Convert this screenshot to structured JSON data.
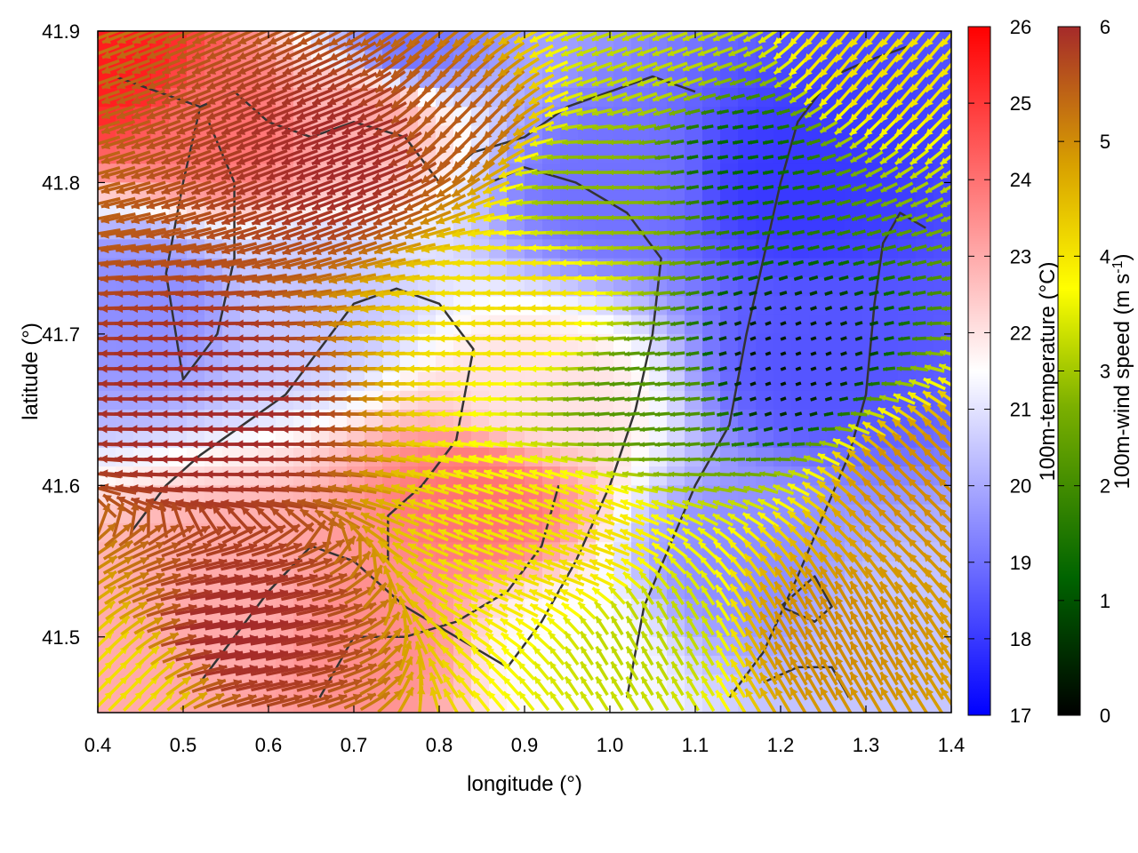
{
  "chart_data": {
    "type": "heatmap",
    "title": "",
    "xlabel": "longitude (°)",
    "ylabel": "latitude (°)",
    "xlim": [
      0.4,
      1.4
    ],
    "ylim": [
      41.45,
      41.9
    ],
    "x_ticks": [
      "0.4",
      "0.5",
      "0.6",
      "0.7",
      "0.8",
      "0.9",
      "1.0",
      "1.1",
      "1.2",
      "1.3",
      "1.4"
    ],
    "y_ticks": [
      "41.5",
      "41.6",
      "41.7",
      "41.8",
      "41.9"
    ],
    "grid": false,
    "fields": {
      "temperature": {
        "label": "100m-temperature (°C)",
        "range": [
          17,
          26
        ],
        "ticks": [
          "17",
          "18",
          "19",
          "20",
          "21",
          "22",
          "23",
          "24",
          "25",
          "26"
        ],
        "colors": [
          "#0000ff",
          "#ffffff",
          "#ff0000"
        ]
      },
      "wind_speed": {
        "label_main": "100m-wind speed (m s",
        "label_sup": "-1",
        "label_end": ")",
        "range": [
          0,
          6
        ],
        "ticks": [
          "0",
          "1",
          "2",
          "3",
          "4",
          "5",
          "6"
        ],
        "colors": [
          "#000000",
          "#006400",
          "#7cb000",
          "#ffff00",
          "#d8a000",
          "#a52a2a"
        ]
      }
    },
    "temperature_centers": [
      {
        "lon": 0.42,
        "lat": 41.88,
        "t": 25.5
      },
      {
        "lon": 0.55,
        "lat": 41.84,
        "t": 24.0
      },
      {
        "lon": 0.72,
        "lat": 41.85,
        "t": 23.0
      },
      {
        "lon": 0.72,
        "lat": 41.5,
        "t": 23.5
      },
      {
        "lon": 0.55,
        "lat": 41.52,
        "t": 23.0
      },
      {
        "lon": 0.85,
        "lat": 41.59,
        "t": 24.0
      },
      {
        "lon": 0.92,
        "lat": 41.66,
        "t": 22.0
      },
      {
        "lon": 0.45,
        "lat": 41.72,
        "t": 19.5
      },
      {
        "lon": 0.65,
        "lat": 41.72,
        "t": 20.5
      },
      {
        "lon": 1.0,
        "lat": 41.8,
        "t": 19.0
      },
      {
        "lon": 1.22,
        "lat": 41.8,
        "t": 18.0
      },
      {
        "lon": 1.25,
        "lat": 41.68,
        "t": 18.5
      },
      {
        "lon": 1.15,
        "lat": 41.55,
        "t": 19.5
      },
      {
        "lon": 1.35,
        "lat": 41.5,
        "t": 20.5
      },
      {
        "lon": 0.76,
        "lat": 41.89,
        "t": 19.0
      },
      {
        "lon": 0.95,
        "lat": 41.49,
        "t": 21.5
      }
    ],
    "wind_centers": [
      {
        "lon": 0.55,
        "lat": 41.65,
        "s": 6.0,
        "dir": 180
      },
      {
        "lon": 0.7,
        "lat": 41.82,
        "s": 6.0,
        "dir": 200
      },
      {
        "lon": 0.55,
        "lat": 41.5,
        "s": 6.0,
        "dir": 10
      },
      {
        "lon": 0.82,
        "lat": 41.84,
        "s": 5.5,
        "dir": 225
      },
      {
        "lon": 0.9,
        "lat": 41.72,
        "s": 4.0,
        "dir": 180
      },
      {
        "lon": 0.98,
        "lat": 41.8,
        "s": 2.5,
        "dir": 180
      },
      {
        "lon": 1.05,
        "lat": 41.66,
        "s": 2.0,
        "dir": 185
      },
      {
        "lon": 1.2,
        "lat": 41.68,
        "s": 0.3,
        "dir": 200
      },
      {
        "lon": 1.15,
        "lat": 41.82,
        "s": 1.2,
        "dir": 190
      },
      {
        "lon": 0.95,
        "lat": 41.56,
        "s": 4.0,
        "dir": 160
      },
      {
        "lon": 1.05,
        "lat": 41.5,
        "s": 3.0,
        "dir": 120
      },
      {
        "lon": 1.25,
        "lat": 41.5,
        "s": 5.0,
        "dir": 120
      },
      {
        "lon": 1.37,
        "lat": 41.6,
        "s": 5.0,
        "dir": 135
      },
      {
        "lon": 1.3,
        "lat": 41.88,
        "s": 4.0,
        "dir": 230
      },
      {
        "lon": 1.05,
        "lat": 41.88,
        "s": 3.0,
        "dir": 200
      },
      {
        "lon": 0.43,
        "lat": 41.47,
        "s": 4.0,
        "dir": 45
      }
    ],
    "contours": [
      [
        [
          0.42,
          41.87
        ],
        [
          0.47,
          41.86
        ],
        [
          0.52,
          41.85
        ],
        [
          0.56,
          41.86
        ],
        [
          0.6,
          41.84
        ],
        [
          0.65,
          41.83
        ],
        [
          0.7,
          41.84
        ],
        [
          0.76,
          41.83
        ],
        [
          0.8,
          41.8
        ],
        [
          0.84,
          41.82
        ],
        [
          0.9,
          41.83
        ],
        [
          0.95,
          41.85
        ],
        [
          1.0,
          41.86
        ],
        [
          1.05,
          41.87
        ],
        [
          1.1,
          41.86
        ]
      ],
      [
        [
          0.52,
          41.85
        ],
        [
          0.5,
          41.8
        ],
        [
          0.48,
          41.74
        ],
        [
          0.5,
          41.67
        ],
        [
          0.54,
          41.7
        ],
        [
          0.56,
          41.75
        ],
        [
          0.56,
          41.8
        ],
        [
          0.53,
          41.84
        ]
      ],
      [
        [
          0.44,
          41.57
        ],
        [
          0.48,
          41.6
        ],
        [
          0.52,
          41.62
        ],
        [
          0.57,
          41.64
        ],
        [
          0.62,
          41.66
        ],
        [
          0.66,
          41.69
        ],
        [
          0.7,
          41.72
        ],
        [
          0.75,
          41.73
        ],
        [
          0.8,
          41.72
        ],
        [
          0.84,
          41.69
        ],
        [
          0.82,
          41.63
        ],
        [
          0.78,
          41.6
        ],
        [
          0.74,
          41.58
        ],
        [
          0.74,
          41.55
        ]
      ],
      [
        [
          0.52,
          41.47
        ],
        [
          0.56,
          41.5
        ],
        [
          0.6,
          41.53
        ],
        [
          0.65,
          41.56
        ],
        [
          0.7,
          41.55
        ],
        [
          0.76,
          41.52
        ],
        [
          0.82,
          41.5
        ],
        [
          0.88,
          41.48
        ],
        [
          0.92,
          41.51
        ],
        [
          0.96,
          41.55
        ],
        [
          1.0,
          41.6
        ],
        [
          1.03,
          41.65
        ],
        [
          1.05,
          41.7
        ],
        [
          1.06,
          41.75
        ],
        [
          1.02,
          41.78
        ],
        [
          0.96,
          41.8
        ],
        [
          0.9,
          41.81
        ],
        [
          0.86,
          41.8
        ]
      ],
      [
        [
          0.66,
          41.46
        ],
        [
          0.7,
          41.5
        ],
        [
          0.76,
          41.5
        ],
        [
          0.82,
          41.51
        ],
        [
          0.88,
          41.53
        ],
        [
          0.92,
          41.56
        ],
        [
          0.94,
          41.6
        ]
      ],
      [
        [
          1.02,
          41.46
        ],
        [
          1.04,
          41.52
        ],
        [
          1.07,
          41.56
        ],
        [
          1.1,
          41.6
        ],
        [
          1.14,
          41.64
        ],
        [
          1.16,
          41.7
        ],
        [
          1.18,
          41.75
        ],
        [
          1.2,
          41.8
        ],
        [
          1.22,
          41.84
        ],
        [
          1.26,
          41.87
        ],
        [
          1.3,
          41.88
        ],
        [
          1.35,
          41.89
        ]
      ],
      [
        [
          1.14,
          41.46
        ],
        [
          1.18,
          41.49
        ],
        [
          1.22,
          41.54
        ],
        [
          1.25,
          41.58
        ],
        [
          1.28,
          41.62
        ],
        [
          1.3,
          41.66
        ],
        [
          1.31,
          41.72
        ],
        [
          1.32,
          41.76
        ],
        [
          1.34,
          41.78
        ],
        [
          1.37,
          41.77
        ]
      ],
      [
        [
          1.18,
          41.47
        ],
        [
          1.22,
          41.48
        ],
        [
          1.26,
          41.48
        ],
        [
          1.28,
          41.46
        ]
      ],
      [
        [
          1.2,
          41.52
        ],
        [
          1.24,
          41.54
        ],
        [
          1.26,
          41.52
        ],
        [
          1.24,
          41.51
        ],
        [
          1.2,
          41.52
        ]
      ]
    ]
  }
}
